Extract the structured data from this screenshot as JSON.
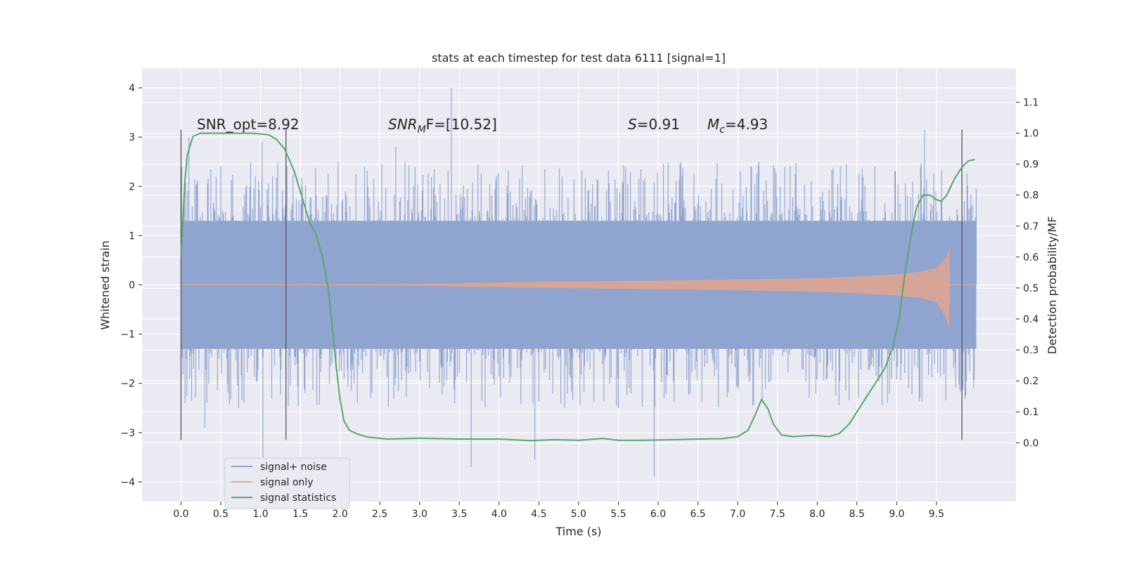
{
  "chart_data": {
    "type": "line",
    "title": "stats at each timestep for test data 6111 [signal=1]",
    "xlabel": "Time (s)",
    "ylabel": "Whitened strain",
    "y2label": "Detection probability/MF",
    "xlim": [
      -0.49,
      10.5
    ],
    "ylim": [
      -4.4,
      4.4
    ],
    "y2lim": [
      -0.19,
      1.21
    ],
    "x_ticks": [
      0.0,
      0.5,
      1.0,
      1.5,
      2.0,
      2.5,
      3.0,
      3.5,
      4.0,
      4.5,
      5.0,
      5.5,
      6.0,
      6.5,
      7.0,
      7.5,
      8.0,
      8.5,
      9.0,
      9.5
    ],
    "x_tick_labels": [
      "0.0",
      "0.5",
      "1.0",
      "1.5",
      "2.0",
      "2.5",
      "3.0",
      "3.5",
      "4.0",
      "4.5",
      "5.0",
      "5.5",
      "6.0",
      "6.5",
      "7.0",
      "7.5",
      "8.0",
      "8.5",
      "9.0",
      "9.5"
    ],
    "y_ticks": [
      4,
      3,
      2,
      1,
      0,
      -1,
      -2,
      -3,
      -4
    ],
    "y_tick_labels": [
      "4",
      "3",
      "2",
      "1",
      "0",
      "−1",
      "−2",
      "−3",
      "−4"
    ],
    "y2_ticks": [
      1.1,
      1.0,
      0.9,
      0.8,
      0.7,
      0.6,
      0.5,
      0.4,
      0.3,
      0.2,
      0.1,
      0.0
    ],
    "y2_tick_labels": [
      "1.1",
      "1.0",
      "0.9",
      "0.8",
      "0.7",
      "0.6",
      "0.5",
      "0.4",
      "0.3",
      "0.2",
      "0.1",
      "0.0"
    ],
    "grid": true,
    "legend_placement": "lower-left",
    "legend": [
      {
        "label": "signal+ noise",
        "color": "#8fa4cf"
      },
      {
        "label": "signal only",
        "color": "#e5a58a"
      },
      {
        "label": "signal statistics",
        "color": "#55a868"
      }
    ],
    "annotations": {
      "snr_opt": "SNR_opt=8.92",
      "snr_mf_main": "SNR",
      "snr_mf_sub": "M",
      "snr_mf_rest": "F=[10.52]",
      "s_var": "S",
      "s_value": "=0.91",
      "mc_var": "M",
      "mc_sub": "c",
      "mc_value": "=4.93"
    },
    "vertical_markers_x": [
      0.0,
      1.32,
      9.82
    ],
    "vertical_marker_range_y": [
      -3.15,
      3.15
    ],
    "series": [
      {
        "name": "signal+ noise",
        "color": "#8fa4cf",
        "axis": "left",
        "x_range": [
          0.0,
          10.0
        ],
        "envelope_band": [
          -1.3,
          1.3
        ],
        "spike_max": 2.5,
        "notable_peaks": [
          [
            3.4,
            4.0
          ],
          [
            9.35,
            3.15
          ],
          [
            0.1,
            3.0
          ],
          [
            1.02,
            2.9
          ],
          [
            2.7,
            2.8
          ],
          [
            5.95,
            -3.9
          ],
          [
            3.65,
            -3.7
          ],
          [
            4.45,
            -3.55
          ],
          [
            1.03,
            -3.5
          ],
          [
            0.3,
            -2.9
          ]
        ]
      },
      {
        "name": "signal only",
        "color": "#e5a58a",
        "axis": "left",
        "chirp": [
          [
            0.0,
            0.0
          ],
          [
            3.0,
            0.02
          ],
          [
            4.0,
            0.05
          ],
          [
            5.0,
            0.07
          ],
          [
            6.0,
            0.09
          ],
          [
            7.0,
            0.11
          ],
          [
            8.0,
            0.14
          ],
          [
            8.5,
            0.17
          ],
          [
            9.0,
            0.22
          ],
          [
            9.3,
            0.27
          ],
          [
            9.5,
            0.35
          ],
          [
            9.62,
            0.55
          ],
          [
            9.66,
            0.75
          ],
          [
            9.67,
            0.0
          ],
          [
            10.0,
            0.0
          ]
        ]
      },
      {
        "name": "signal statistics",
        "color": "#55a868",
        "axis": "right",
        "points": [
          [
            0.0,
            0.6
          ],
          [
            0.05,
            0.85
          ],
          [
            0.08,
            0.93
          ],
          [
            0.15,
            0.99
          ],
          [
            0.25,
            1.0
          ],
          [
            0.6,
            1.0
          ],
          [
            0.9,
            1.0
          ],
          [
            1.1,
            0.995
          ],
          [
            1.2,
            0.98
          ],
          [
            1.3,
            0.95
          ],
          [
            1.42,
            0.88
          ],
          [
            1.55,
            0.77
          ],
          [
            1.62,
            0.71
          ],
          [
            1.7,
            0.67
          ],
          [
            1.78,
            0.6
          ],
          [
            1.85,
            0.5
          ],
          [
            1.9,
            0.38
          ],
          [
            1.95,
            0.25
          ],
          [
            2.0,
            0.14
          ],
          [
            2.05,
            0.07
          ],
          [
            2.12,
            0.04
          ],
          [
            2.2,
            0.03
          ],
          [
            2.35,
            0.018
          ],
          [
            2.6,
            0.012
          ],
          [
            3.0,
            0.015
          ],
          [
            3.5,
            0.012
          ],
          [
            4.0,
            0.012
          ],
          [
            4.4,
            0.007
          ],
          [
            4.7,
            0.01
          ],
          [
            5.0,
            0.008
          ],
          [
            5.2,
            0.012
          ],
          [
            5.3,
            0.014
          ],
          [
            5.5,
            0.008
          ],
          [
            5.8,
            0.008
          ],
          [
            6.2,
            0.01
          ],
          [
            6.5,
            0.012
          ],
          [
            6.8,
            0.013
          ],
          [
            7.0,
            0.02
          ],
          [
            7.13,
            0.04
          ],
          [
            7.22,
            0.09
          ],
          [
            7.3,
            0.14
          ],
          [
            7.38,
            0.11
          ],
          [
            7.45,
            0.06
          ],
          [
            7.55,
            0.025
          ],
          [
            7.7,
            0.02
          ],
          [
            7.95,
            0.024
          ],
          [
            8.15,
            0.02
          ],
          [
            8.28,
            0.03
          ],
          [
            8.4,
            0.06
          ],
          [
            8.55,
            0.12
          ],
          [
            8.7,
            0.18
          ],
          [
            8.85,
            0.24
          ],
          [
            8.95,
            0.31
          ],
          [
            9.03,
            0.4
          ],
          [
            9.1,
            0.54
          ],
          [
            9.18,
            0.67
          ],
          [
            9.25,
            0.76
          ],
          [
            9.33,
            0.8
          ],
          [
            9.42,
            0.8
          ],
          [
            9.5,
            0.785
          ],
          [
            9.56,
            0.78
          ],
          [
            9.63,
            0.8
          ],
          [
            9.72,
            0.85
          ],
          [
            9.82,
            0.89
          ],
          [
            9.9,
            0.91
          ],
          [
            9.98,
            0.915
          ]
        ]
      }
    ]
  }
}
